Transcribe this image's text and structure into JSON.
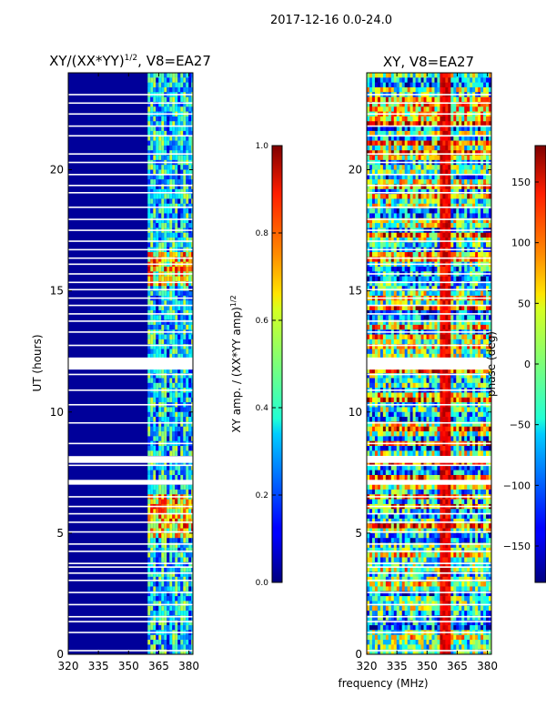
{
  "suptitle": "2017-12-16 0.0-24.0",
  "chart_data": [
    {
      "type": "heatmap",
      "title_main": "XY/(XX*YY)",
      "title_exp": "1/2",
      "title_tail": ", V8=EA27",
      "xlabel": "",
      "ylabel": "UT (hours)",
      "xlim": [
        320,
        382
      ],
      "ylim": [
        0,
        24
      ],
      "x_ticks": [
        320,
        335,
        350,
        365,
        380
      ],
      "y_ticks": [
        0,
        5,
        10,
        15,
        20
      ],
      "colormap": "jet",
      "bright_band_mhz": [
        359.5,
        382
      ],
      "hot_hours": [
        [
          4.8,
          6.6
        ],
        [
          15.2,
          16.6
        ]
      ],
      "colorbar": {
        "label_main": "XY amp. / (XX*YY amp)",
        "label_exp": "1/2",
        "range": [
          0.0,
          1.0
        ],
        "ticks": [
          "0.0",
          "0.2",
          "0.4",
          "0.6",
          "0.8",
          "1.0"
        ]
      }
    },
    {
      "type": "heatmap",
      "title": "XY, V8=EA27",
      "xlabel": "frequency (MHz)",
      "ylabel": "",
      "xlim": [
        320,
        382
      ],
      "ylim": [
        0,
        24
      ],
      "x_ticks": [
        320,
        335,
        350,
        365,
        380
      ],
      "y_ticks": [
        0,
        5,
        10,
        15,
        20
      ],
      "colormap": "jet",
      "red_band_mhz": [
        356,
        362
      ],
      "colorbar": {
        "label": "phase (deg)",
        "range": [
          -180,
          180
        ],
        "ticks": [
          "150",
          "100",
          "50",
          "0",
          "−50",
          "−100",
          "−150"
        ],
        "tick_values": [
          150,
          100,
          50,
          0,
          -50,
          -100,
          -150
        ]
      }
    }
  ],
  "flagged_hours": [
    0.15,
    0.9,
    1.35,
    1.55,
    2.05,
    2.55,
    3.05,
    3.35,
    3.6,
    3.75,
    4.25,
    4.55,
    5.05,
    5.45,
    5.8,
    6.1,
    6.5,
    7.8,
    8.15,
    8.7,
    9.55,
    10.3,
    10.9,
    11.55,
    12.75,
    13.3,
    13.75,
    14.05,
    14.4,
    14.7,
    15.05,
    15.35,
    15.7,
    16.1,
    16.35,
    16.7,
    17.05,
    17.5,
    17.95,
    18.45,
    19.05,
    19.35,
    19.8,
    20.3,
    20.65,
    21.4,
    21.8,
    22.3,
    22.75,
    23.1
  ]
}
